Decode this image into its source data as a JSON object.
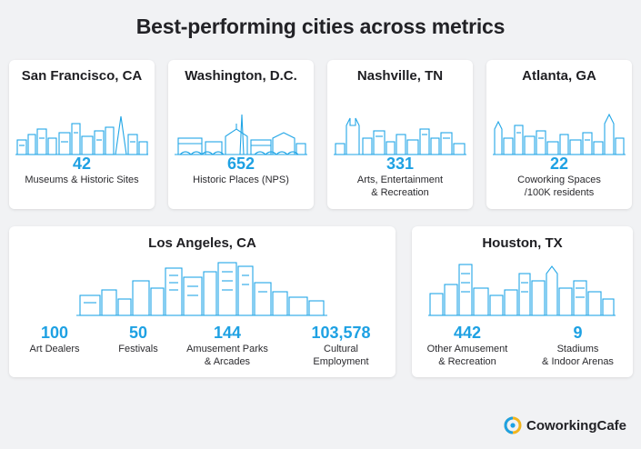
{
  "page": {
    "title": "Best-performing cities across metrics"
  },
  "cards": {
    "sf": {
      "title": "San Francisco, CA",
      "metrics": [
        {
          "value": "42",
          "label": "Museums & Historic Sites"
        }
      ]
    },
    "dc": {
      "title": "Washington, D.C.",
      "metrics": [
        {
          "value": "652",
          "label": "Historic Places (NPS)"
        }
      ]
    },
    "nash": {
      "title": "Nashville, TN",
      "metrics": [
        {
          "value": "331",
          "label": "Arts, Entertainment\n& Recreation"
        }
      ]
    },
    "atl": {
      "title": "Atlanta, GA",
      "metrics": [
        {
          "value": "22",
          "label": "Coworking Spaces\n/100K residents"
        }
      ]
    },
    "la": {
      "title": "Los Angeles, CA",
      "metrics": [
        {
          "value": "100",
          "label": "Art Dealers"
        },
        {
          "value": "50",
          "label": "Festivals"
        },
        {
          "value": "144",
          "label": "Amusement Parks\n& Arcades"
        },
        {
          "value": "103,578",
          "label": "Cultural\nEmployment"
        }
      ]
    },
    "hou": {
      "title": "Houston, TX",
      "metrics": [
        {
          "value": "442",
          "label": "Other Amusement\n& Recreation"
        },
        {
          "value": "9",
          "label": "Stadiums\n& Indoor Arenas"
        }
      ]
    }
  },
  "brand": {
    "name": "CoworkingCafe",
    "icon": "coworkingcafe-logo-icon",
    "accent": "#1ea1e3"
  },
  "colors": {
    "accent": "#1ea1e3",
    "skyline": "#22a6e6",
    "background": "#f1f2f4",
    "card": "#ffffff"
  }
}
